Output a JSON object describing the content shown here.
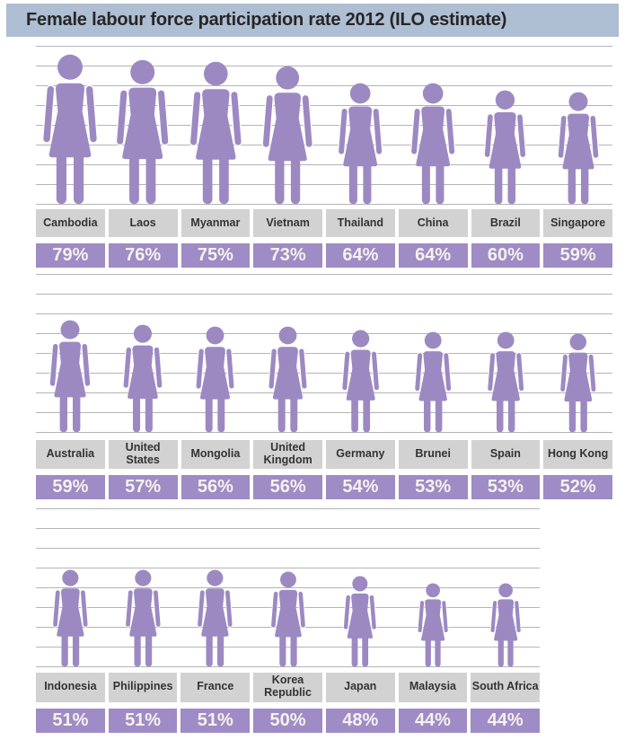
{
  "title_bar": {
    "title": "Female labour force participation rate 2012 (ILO estimate)"
  },
  "colors": {
    "title_bar_bg": "#aebed3",
    "figure_purple": "#9d89c2",
    "percent_box_bg": "#9f8bc5",
    "percent_text": "#f5f2ee",
    "label_box_bg": "#d2d2d2",
    "gridline": "#b4b4b4"
  },
  "chart_data": {
    "type": "bar",
    "variant": "pictogram",
    "icon": "female-figure",
    "title": "Female labour force participation rate 2012 (ILO estimate)",
    "unit": "%",
    "value_range": [
      0,
      100
    ],
    "grid": "horizontal-lines",
    "legend": "none",
    "rows": [
      {
        "categories": [
          "Cambodia",
          "Laos",
          "Myanmar",
          "Vietnam",
          "Thailand",
          "China",
          "Brazil",
          "Singapore"
        ],
        "values": [
          79,
          76,
          75,
          73,
          64,
          64,
          60,
          59
        ]
      },
      {
        "categories": [
          "Australia",
          "United States",
          "Mongolia",
          "United Kingdom",
          "Germany",
          "Brunei",
          "Spain",
          "Hong Kong"
        ],
        "values": [
          59,
          57,
          56,
          56,
          54,
          53,
          53,
          52
        ]
      },
      {
        "categories": [
          "Indonesia",
          "Philippines",
          "France",
          "Korea Republic",
          "Japan",
          "Malaysia",
          "South Africa"
        ],
        "values": [
          51,
          51,
          51,
          50,
          48,
          44,
          44
        ]
      }
    ]
  }
}
